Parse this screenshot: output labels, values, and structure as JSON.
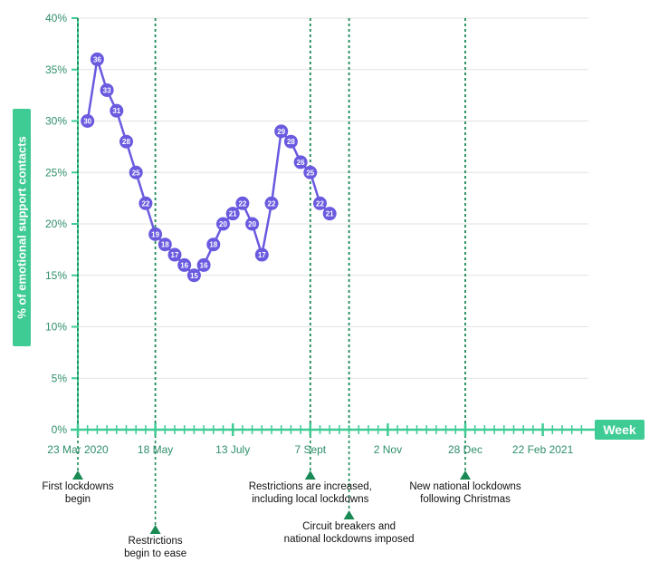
{
  "chart_data": {
    "type": "line",
    "ylabel": "% of emotional support contacts",
    "xlabel": "Week",
    "ylim": [
      0,
      40
    ],
    "yticks": [
      "0%",
      "5%",
      "10%",
      "15%",
      "20%",
      "25%",
      "30%",
      "35%",
      "40%"
    ],
    "xtick_labels": [
      "23 Mar 2020",
      "18 May",
      "13 July",
      "7 Sept",
      "2 Nov",
      "28 Dec",
      "22 Feb 2021"
    ],
    "series": [
      {
        "values": [
          30,
          36,
          33,
          31,
          28,
          25,
          22,
          19,
          18,
          17,
          16,
          15,
          16,
          18,
          20,
          21,
          22,
          20,
          17,
          22,
          29,
          28,
          26,
          25,
          22,
          21
        ]
      }
    ],
    "annotations": [
      {
        "week_index": 0,
        "lines": [
          "First lockdowns",
          "begin"
        ]
      },
      {
        "week_index": 8,
        "lines": [
          "Restrictions",
          "begin to ease"
        ]
      },
      {
        "week_index": 24,
        "lines": [
          "Restrictions are increased,",
          "including local lockdowns"
        ]
      },
      {
        "week_index": 28,
        "lines": [
          "Circuit breakers and",
          "national lockdowns imposed"
        ]
      },
      {
        "week_index": 40,
        "lines": [
          "New national lockdowns",
          "following Christmas"
        ]
      }
    ],
    "colors": {
      "accent": "#3ecb94",
      "line": "#6a5ae0",
      "axis": "#3ecb94"
    }
  }
}
